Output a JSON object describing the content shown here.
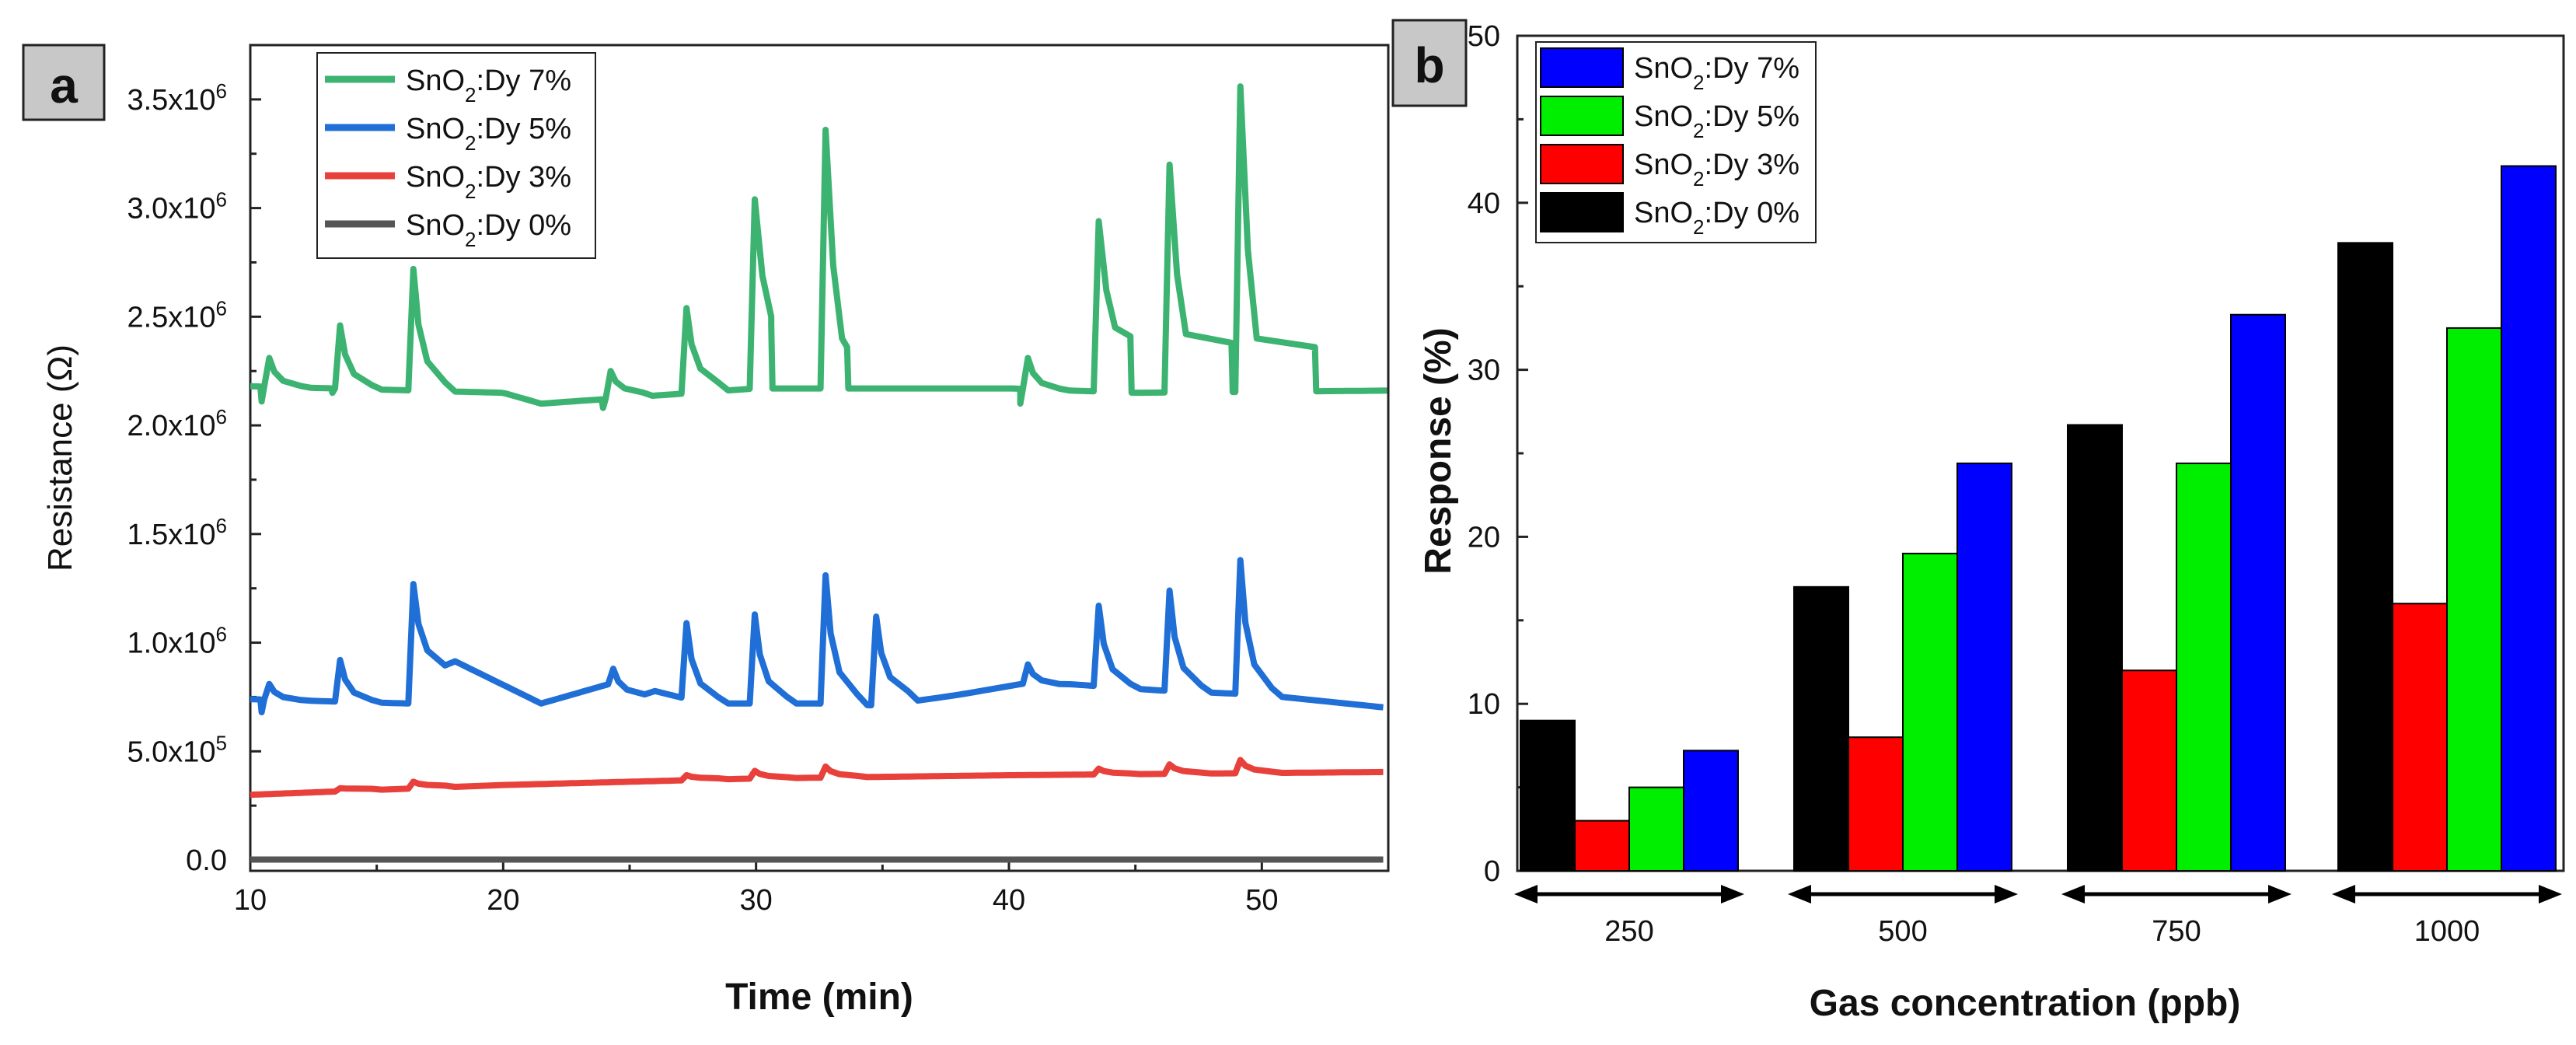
{
  "chart_data": [
    {
      "panel_label": "a",
      "type": "line",
      "xlabel": "Time (min)",
      "ylabel": "Resistance (Ω)",
      "xlim": [
        10,
        55
      ],
      "ylim": [
        -50000,
        3750000
      ],
      "x_ticks": [
        10,
        20,
        30,
        40,
        50
      ],
      "y_ticks": [
        0,
        500000,
        1000000,
        1500000,
        2000000,
        2500000,
        3000000,
        3500000
      ],
      "y_tick_labels": [
        {
          "mantissa": "0.0",
          "exp": ""
        },
        {
          "mantissa": "5.0x10",
          "exp": "5"
        },
        {
          "mantissa": "1.0x10",
          "exp": "6"
        },
        {
          "mantissa": "1.5x10",
          "exp": "6"
        },
        {
          "mantissa": "2.0x10",
          "exp": "6"
        },
        {
          "mantissa": "2.5x10",
          "exp": "6"
        },
        {
          "mantissa": "3.0x10",
          "exp": "6"
        },
        {
          "mantissa": "3.5x10",
          "exp": "6"
        }
      ],
      "legend_position": "top-center",
      "series": [
        {
          "name_main": "SnO",
          "name_sub": "2",
          "name_rest": ":Dy 7%",
          "color": "#3cb371",
          "baseline": [
            [
              10,
              2180000
            ],
            [
              20,
              2150000
            ],
            [
              21.5,
              2100000
            ],
            [
              30,
              2170000
            ],
            [
              40,
              2170000
            ],
            [
              45,
              2150000
            ],
            [
              55,
              2160000
            ]
          ],
          "peaks": [
            {
              "t": 10.8,
              "v": 2310000,
              "dip": 2110000
            },
            {
              "t": 13.6,
              "v": 2460000,
              "dip": 2150000
            },
            {
              "t": 16.5,
              "v": 2720000
            },
            {
              "t": 24.3,
              "v": 2250000,
              "dip": 2080000
            },
            {
              "t": 27.3,
              "v": 2540000
            },
            {
              "t": 30.0,
              "v": 3040000,
              "plateau": 2500000
            },
            {
              "t": 32.8,
              "v": 3360000,
              "plateau": 2400000,
              "plateau_end": 33.6
            },
            {
              "t": 40.8,
              "v": 2310000,
              "dip": 2100000
            },
            {
              "t": 43.6,
              "v": 2940000,
              "plateau": 2450000,
              "plateau_end": 44.8
            },
            {
              "t": 46.4,
              "v": 3200000,
              "plateau": 2420000,
              "plateau_end": 48.8
            },
            {
              "t": 49.2,
              "v": 3560000,
              "plateau": 2400000,
              "plateau_end": 52.1
            }
          ]
        },
        {
          "name_main": "SnO",
          "name_sub": "2",
          "name_rest": ":Dy 5%",
          "color": "#1f6fd6",
          "baseline": [
            [
              10,
              740000
            ],
            [
              16.3,
              720000
            ],
            [
              18,
              920000
            ],
            [
              21.5,
              720000
            ],
            [
              24.5,
              820000
            ],
            [
              28,
              720000
            ],
            [
              32.5,
              720000
            ],
            [
              35,
              710000
            ],
            [
              38,
              760000
            ],
            [
              41,
              820000
            ],
            [
              46,
              780000
            ],
            [
              50,
              760000
            ],
            [
              55,
              700000
            ]
          ],
          "peaks": [
            {
              "t": 10.8,
              "v": 810000,
              "dip": 680000
            },
            {
              "t": 13.6,
              "v": 920000
            },
            {
              "t": 16.5,
              "v": 1270000
            },
            {
              "t": 24.4,
              "v": 880000
            },
            {
              "t": 27.3,
              "v": 1090000
            },
            {
              "t": 30.0,
              "v": 1130000
            },
            {
              "t": 32.8,
              "v": 1310000
            },
            {
              "t": 34.8,
              "v": 1120000
            },
            {
              "t": 40.8,
              "v": 900000
            },
            {
              "t": 43.6,
              "v": 1170000
            },
            {
              "t": 46.4,
              "v": 1240000
            },
            {
              "t": 49.2,
              "v": 1380000
            }
          ]
        },
        {
          "name_main": "SnO",
          "name_sub": "2",
          "name_rest": ":Dy 3%",
          "color": "#e8403a",
          "baseline": [
            [
              10,
              300000
            ],
            [
              20,
              345000
            ],
            [
              30,
              375000
            ],
            [
              40,
              390000
            ],
            [
              55,
              405000
            ]
          ],
          "peaks": [
            {
              "t": 13.6,
              "v": 330000
            },
            {
              "t": 16.5,
              "v": 360000
            },
            {
              "t": 27.3,
              "v": 390000
            },
            {
              "t": 30.0,
              "v": 410000
            },
            {
              "t": 32.8,
              "v": 430000
            },
            {
              "t": 43.6,
              "v": 420000
            },
            {
              "t": 46.4,
              "v": 440000
            },
            {
              "t": 49.2,
              "v": 460000
            }
          ]
        },
        {
          "name_main": "SnO",
          "name_sub": "2",
          "name_rest": ":Dy 0%",
          "color": "#555555",
          "baseline": [
            [
              10,
              2000
            ],
            [
              55,
              2000
            ]
          ],
          "peaks": []
        }
      ]
    },
    {
      "panel_label": "b",
      "type": "bar",
      "xlabel": "Gas concentration (ppb)",
      "ylabel": "Response (%)",
      "ylim": [
        0,
        50
      ],
      "y_ticks": [
        0,
        10,
        20,
        30,
        40,
        50
      ],
      "categories": [
        "250",
        "500",
        "750",
        "1000"
      ],
      "legend_position": "top-left",
      "series": [
        {
          "name_main": "SnO",
          "name_sub": "2",
          "name_rest": ":Dy 0%",
          "color": "#000000",
          "values": [
            9,
            17,
            26.7,
            37.6
          ]
        },
        {
          "name_main": "SnO",
          "name_sub": "2",
          "name_rest": ":Dy 3%",
          "color": "#ff0000",
          "values": [
            3,
            8,
            12,
            16
          ]
        },
        {
          "name_main": "SnO",
          "name_sub": "2",
          "name_rest": ":Dy 5%",
          "color": "#00ee00",
          "values": [
            5,
            19,
            24.4,
            32.5
          ]
        },
        {
          "name_main": "SnO",
          "name_sub": "2",
          "name_rest": ":Dy 7%",
          "color": "#0000ff",
          "values": [
            7.2,
            24.4,
            33.3,
            42.2
          ]
        }
      ],
      "legend_order": [
        3,
        2,
        1,
        0
      ]
    }
  ]
}
